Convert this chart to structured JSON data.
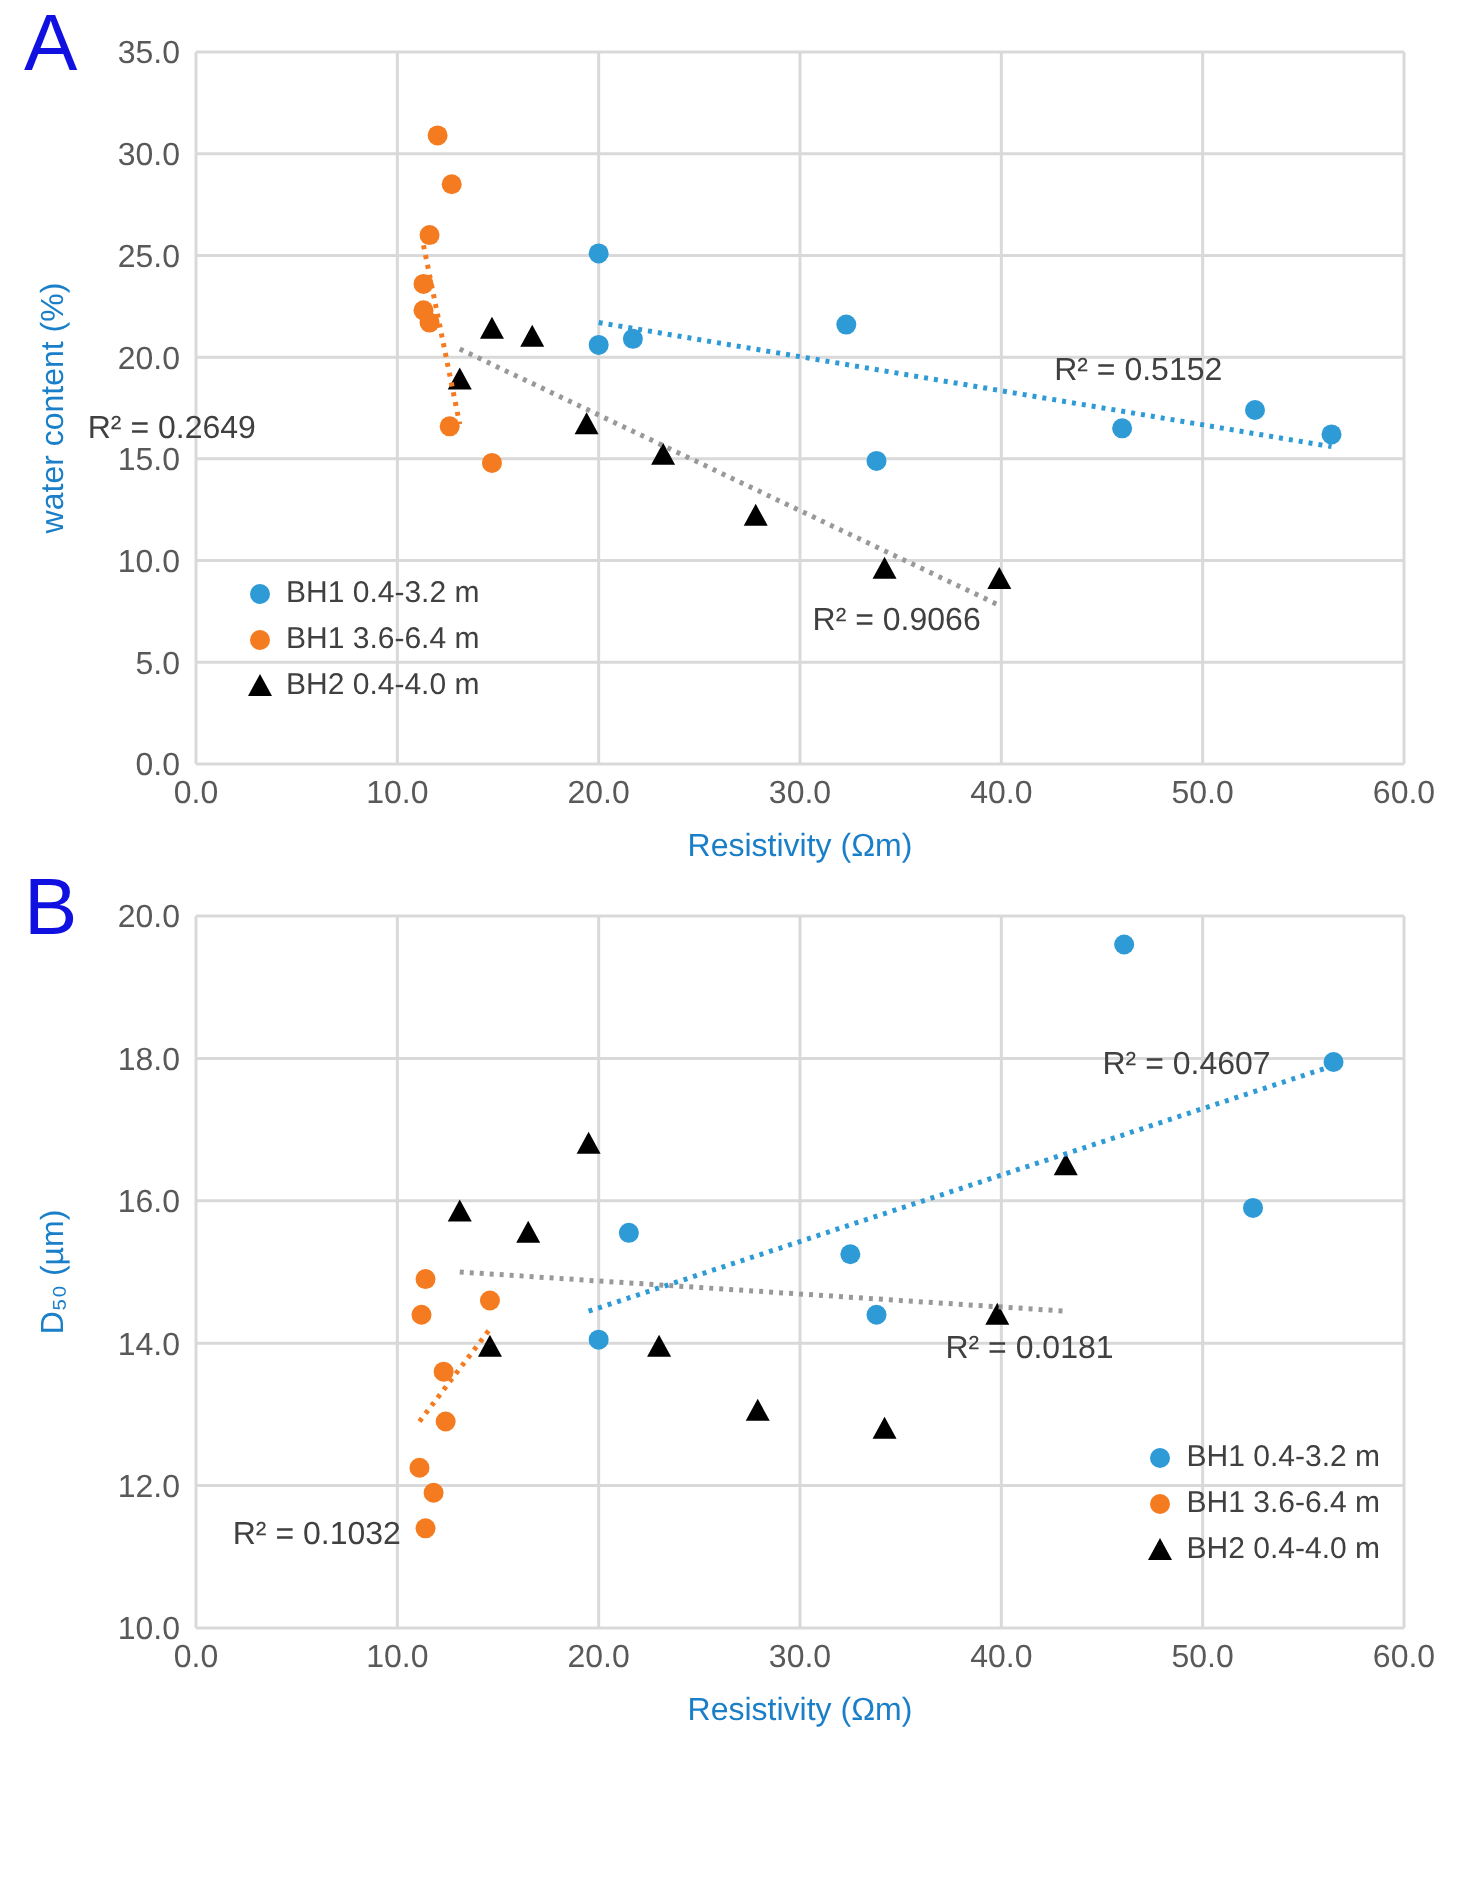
{
  "chart_data": [
    {
      "type": "scatter",
      "xlabel": "Resistivity (Ωm)",
      "ylabel": "water content (%)",
      "xlim": [
        0,
        60
      ],
      "xticks": [
        {
          "value": 0,
          "label": "0.0"
        },
        {
          "value": 10,
          "label": "10.0"
        },
        {
          "value": 20,
          "label": "20.0"
        },
        {
          "value": 30,
          "label": "30.0"
        },
        {
          "value": 40,
          "label": "40.0"
        },
        {
          "value": 50,
          "label": "50.0"
        },
        {
          "value": 60,
          "label": "60.0"
        }
      ],
      "ylim": [
        0,
        35
      ],
      "yticks": [
        {
          "value": 0,
          "label": "0.0"
        },
        {
          "value": 5,
          "label": "5.0"
        },
        {
          "value": 10,
          "label": "10.0"
        },
        {
          "value": 15,
          "label": "15.0"
        },
        {
          "value": 20,
          "label": "20.0"
        },
        {
          "value": 25,
          "label": "25.0"
        },
        {
          "value": 30,
          "label": "30.0"
        },
        {
          "value": 35,
          "label": "35.0"
        }
      ],
      "grid": true,
      "legend": "bottom left",
      "series": [
        {
          "name": "BH1 0.4-3.2 m",
          "color": "#2e9bd6",
          "marker": "circle",
          "x": [
            20.0,
            20.0,
            21.7,
            32.3,
            33.8,
            46.0,
            52.6,
            56.4
          ],
          "values": [
            25.1,
            20.6,
            20.9,
            21.6,
            14.9,
            16.5,
            17.4,
            16.2
          ]
        },
        {
          "name": "BH1 3.6-6.4 m",
          "color": "#f47b20",
          "marker": "circle",
          "x": [
            12.0,
            12.7,
            11.6,
            11.3,
            11.3,
            11.6,
            12.6,
            14.7
          ],
          "values": [
            30.9,
            28.5,
            26.0,
            23.6,
            22.3,
            21.7,
            16.6,
            14.8
          ]
        },
        {
          "name": "BH2 0.4-4.0 m",
          "color": "#000000",
          "marker": "triangle",
          "x": [
            14.7,
            16.7,
            13.1,
            19.4,
            23.2,
            27.8,
            34.2,
            39.9
          ],
          "values": [
            21.4,
            21.0,
            18.9,
            16.7,
            15.2,
            12.2,
            9.6,
            9.1
          ]
        },
        {
          "type": "line",
          "color": "#2e9bd6",
          "line_style": "dotted",
          "marker": "none",
          "x": [
            20.0,
            56.4
          ],
          "values": [
            21.7,
            15.6
          ]
        },
        {
          "type": "line",
          "color": "#f47b20",
          "line_style": "dotted",
          "marker": "none",
          "x": [
            11.3,
            13.1
          ],
          "values": [
            25.5,
            16.7
          ]
        },
        {
          "type": "line",
          "color": "#999999",
          "line_style": "dotted",
          "marker": "none",
          "x": [
            13.1,
            39.9
          ],
          "values": [
            20.4,
            7.8
          ]
        }
      ],
      "annotations": [
        "A",
        "R² = 0.5152",
        "R² = 0.2649",
        "R² = 0.9066"
      ]
    },
    {
      "type": "scatter",
      "xlabel": "Resistivity (Ωm)",
      "ylabel": "D₅₀ (µm)",
      "xlim": [
        0,
        60
      ],
      "xticks": [
        {
          "value": 0,
          "label": "0.0"
        },
        {
          "value": 10,
          "label": "10.0"
        },
        {
          "value": 20,
          "label": "20.0"
        },
        {
          "value": 30,
          "label": "30.0"
        },
        {
          "value": 40,
          "label": "40.0"
        },
        {
          "value": 50,
          "label": "50.0"
        },
        {
          "value": 60,
          "label": "60.0"
        }
      ],
      "ylim": [
        10,
        20
      ],
      "yticks": [
        {
          "value": 10,
          "label": "10.0"
        },
        {
          "value": 12,
          "label": "12.0"
        },
        {
          "value": 14,
          "label": "14.0"
        },
        {
          "value": 16,
          "label": "16.0"
        },
        {
          "value": 18,
          "label": "18.0"
        },
        {
          "value": 20,
          "label": "20.0"
        }
      ],
      "grid": true,
      "legend": "bottom right",
      "series": [
        {
          "name": "BH1 0.4-3.2 m",
          "color": "#2e9bd6",
          "marker": "circle",
          "x": [
            20.0,
            21.5,
            32.5,
            33.8,
            46.1,
            52.5,
            56.5
          ],
          "values": [
            14.05,
            15.55,
            15.25,
            14.4,
            19.6,
            15.9,
            17.95
          ]
        },
        {
          "name": "BH1 3.6-6.4 m",
          "color": "#f47b20",
          "marker": "circle",
          "x": [
            11.4,
            11.2,
            14.6,
            12.3,
            12.4,
            11.1,
            11.8,
            11.4
          ],
          "values": [
            14.9,
            14.4,
            14.6,
            13.6,
            12.9,
            12.25,
            11.9,
            11.4
          ]
        },
        {
          "name": "BH2 0.4-4.0 m",
          "color": "#000000",
          "marker": "triangle",
          "x": [
            13.1,
            16.5,
            19.5,
            14.6,
            23.0,
            27.9,
            34.2,
            39.8,
            43.2
          ],
          "values": [
            15.85,
            15.55,
            16.8,
            13.95,
            13.95,
            13.05,
            12.8,
            14.4,
            16.5
          ]
        },
        {
          "type": "line",
          "color": "#2e9bd6",
          "line_style": "dotted",
          "marker": "none",
          "x": [
            19.5,
            56.5
          ],
          "values": [
            14.45,
            17.9
          ]
        },
        {
          "type": "line",
          "color": "#999999",
          "line_style": "dotted",
          "marker": "none",
          "x": [
            13.1,
            43.2
          ],
          "values": [
            15.0,
            14.45
          ]
        },
        {
          "type": "line",
          "color": "#f47b20",
          "line_style": "dotted",
          "marker": "none",
          "x": [
            11.1,
            14.6
          ],
          "values": [
            12.9,
            14.2
          ]
        }
      ],
      "annotations": [
        "B",
        "R² = 0.4607",
        "R² = 0.0181",
        "R² = 0.1032"
      ]
    }
  ]
}
